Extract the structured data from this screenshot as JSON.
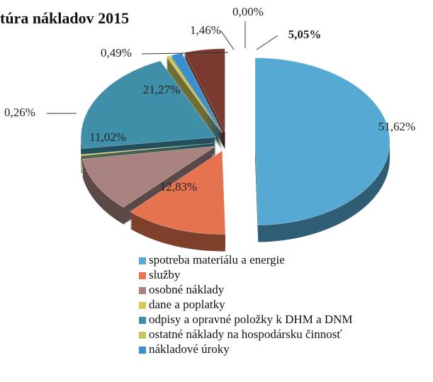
{
  "chart_data": {
    "type": "pie",
    "title": "túra nákladov 2015",
    "categories": [
      "spotreba materiálu a energie",
      "služby",
      "osobné náklady",
      "dane a poplatky",
      "odpisy a opravné položky k DHM a DNM",
      "ostatné náklady na hospodársku činnosť",
      "nákladové úroky",
      null,
      null
    ],
    "values": [
      51.62,
      12.83,
      11.02,
      0.26,
      21.27,
      0.49,
      1.46,
      0.0,
      5.05
    ],
    "value_labels": [
      "51,62%",
      "12,83%",
      "11,02%",
      "0,26%",
      "21,27%",
      "0,49%",
      "1,46%",
      "0,00%",
      "5,05%"
    ],
    "colors": [
      "#55a9d2",
      "#e5734f",
      "#a8827f",
      "#d9c957",
      "#3f8fa9",
      "#c9c65c",
      "#3a8fcf",
      "#888888",
      "#7a3a30"
    ],
    "legend": "bottom"
  }
}
